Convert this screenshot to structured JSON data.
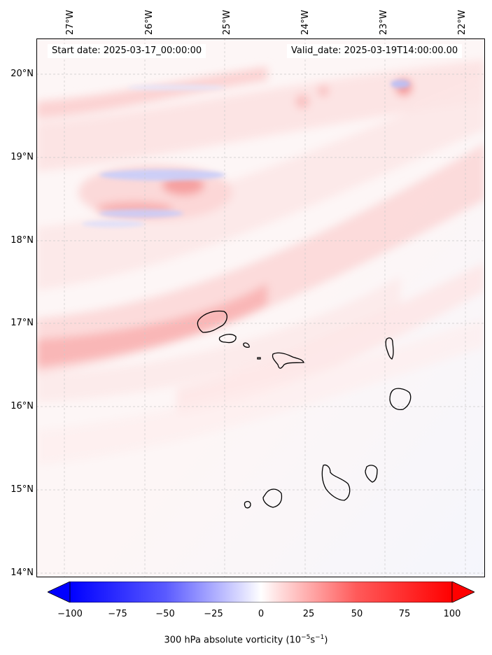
{
  "header": {
    "start_date": "Start date: 2025-03-17_00:00:00",
    "valid_date": "Valid_date: 2025-03-19T14:00:00.00"
  },
  "map": {
    "lon_ticks": [
      "27°W",
      "26°W",
      "25°W",
      "24°W",
      "23°W",
      "22°W"
    ],
    "lat_ticks": [
      "20°N",
      "19°N",
      "18°N",
      "17°N",
      "16°N",
      "15°N",
      "14°N"
    ],
    "gridlines": true,
    "coastline_color": "#000000"
  },
  "colorbar": {
    "ticks": [
      "−100",
      "−75",
      "−50",
      "−25",
      "0",
      "25",
      "50",
      "75",
      "100"
    ],
    "label_prefix": "300 hPa absolute vorticity (10",
    "label_exp1": "−5",
    "label_mid": "s",
    "label_exp2": "−1",
    "label_suffix": ")",
    "colors": {
      "min": "#0000ff",
      "mid": "#ffffff",
      "max": "#ff0000"
    },
    "extend": "both"
  }
}
